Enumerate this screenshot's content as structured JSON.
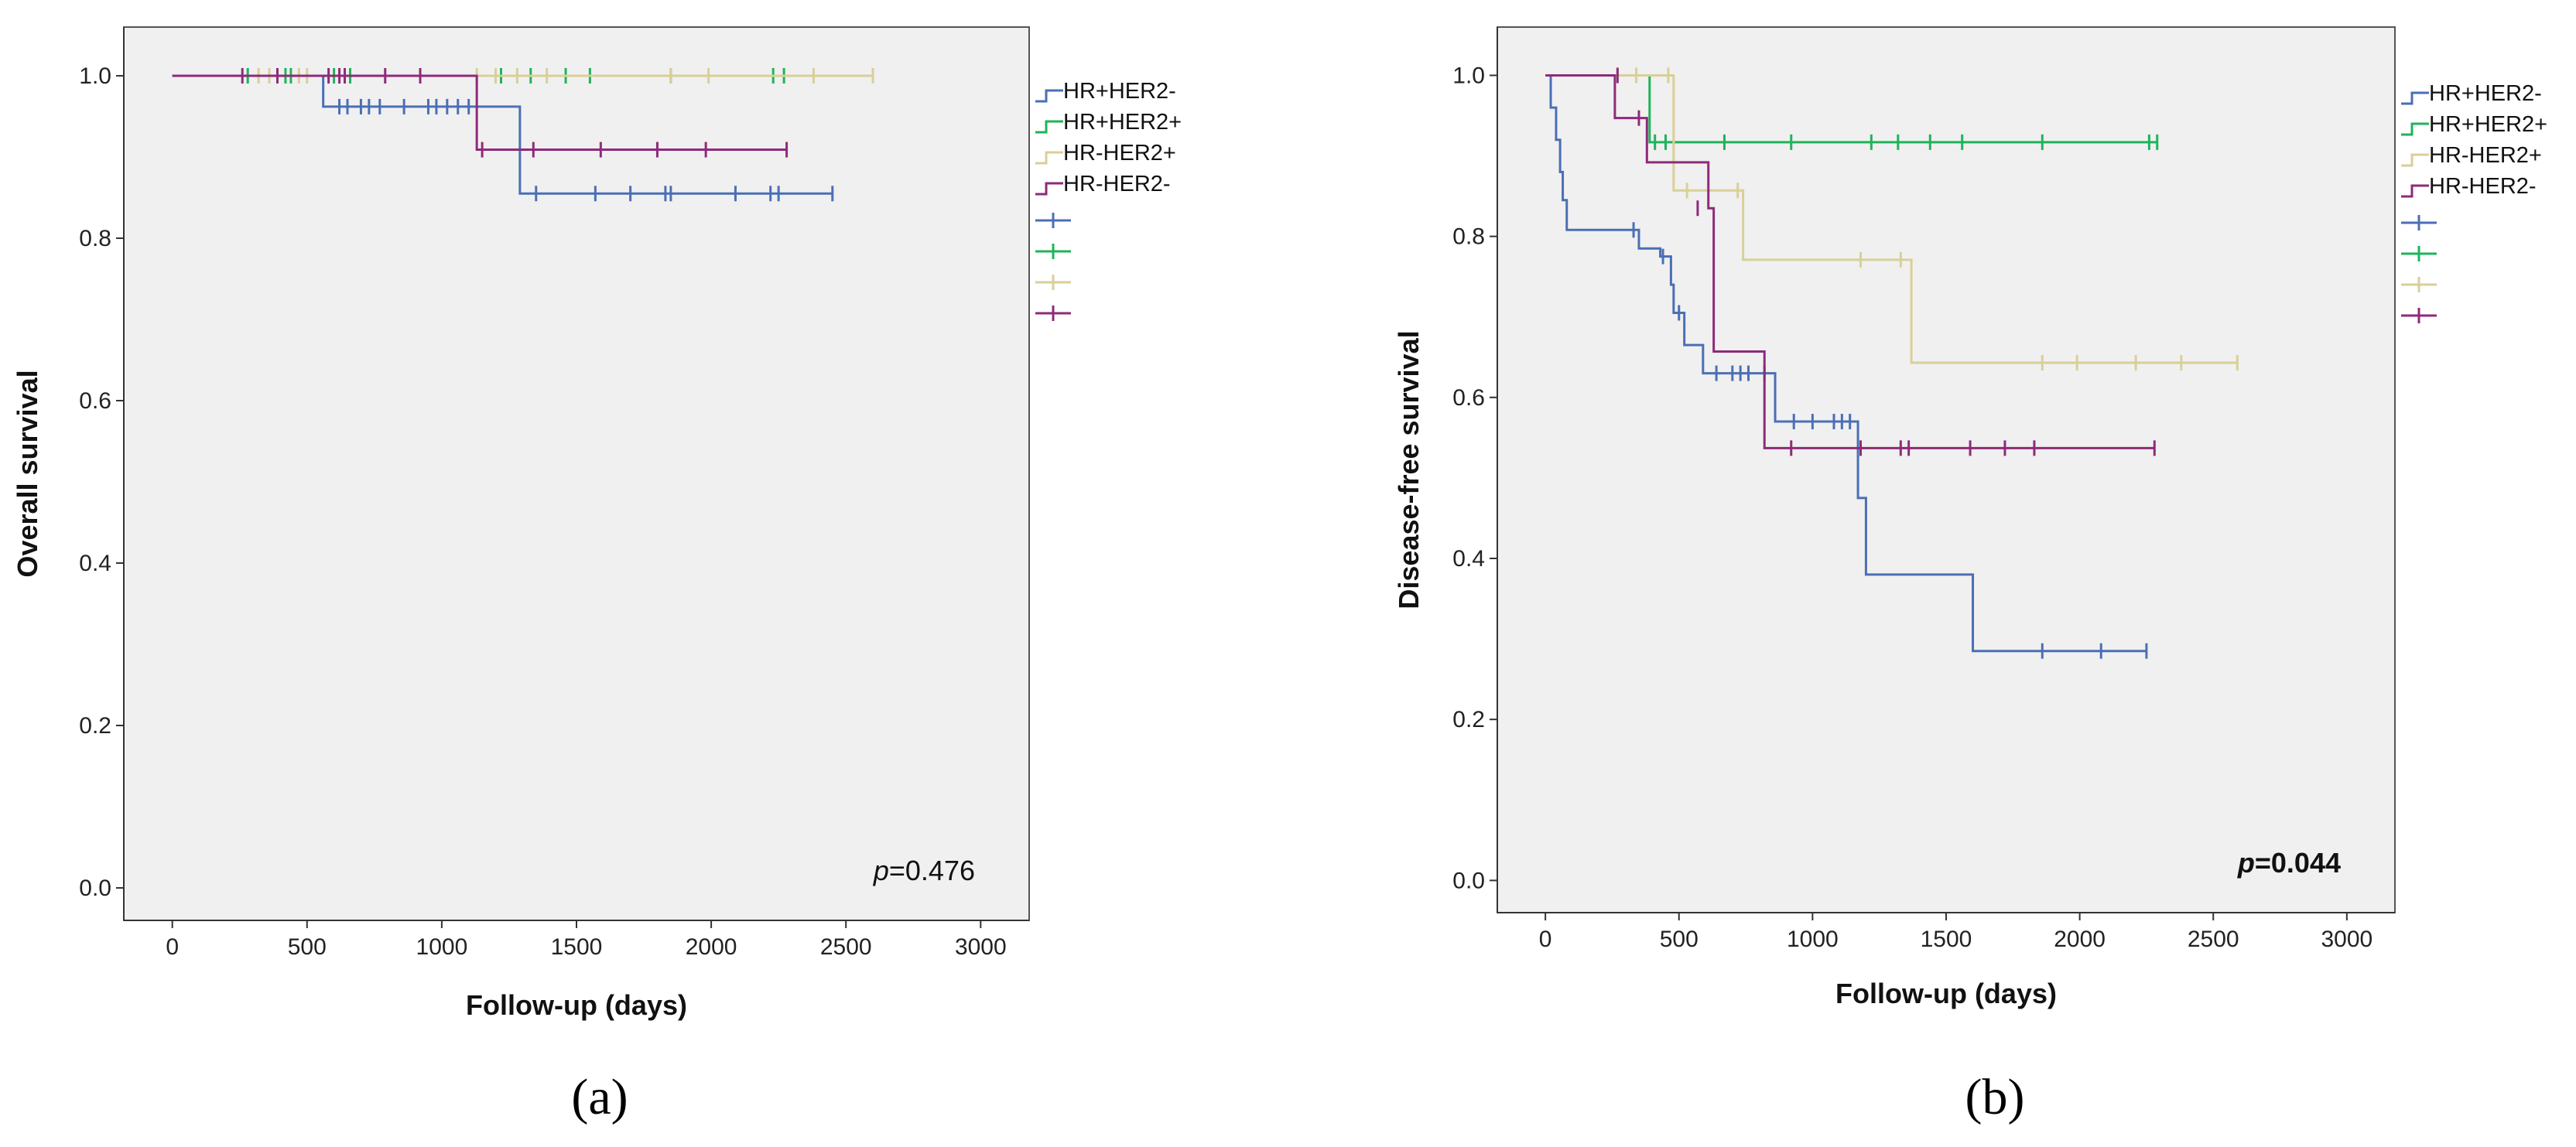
{
  "colors": {
    "HR+HER2-": "#4a6fb5",
    "HR+HER2+": "#1fb35a",
    "HR-HER2+": "#d9cf98",
    "HR-HER2-": "#8e2a7a",
    "plot_bg": "#f0f0f0",
    "frame": "#555555"
  },
  "chart_data": [
    {
      "id": "a",
      "type": "line",
      "subtype": "kaplan-meier",
      "panel_label": "(a)",
      "xlabel": "Follow-up (days)",
      "ylabel": "Overall survival",
      "xlim": [
        -180,
        3180
      ],
      "ylim": [
        -0.04,
        1.06
      ],
      "xticks": [
        0,
        500,
        1000,
        1500,
        2000,
        2500,
        3000
      ],
      "xtick_labels": [
        "0",
        "500",
        "1000",
        "1500",
        "2000",
        "2500",
        "3000"
      ],
      "yticks": [
        0.0,
        0.2,
        0.4,
        0.6,
        0.8,
        1.0
      ],
      "ytick_labels": [
        "0.0",
        "0.2",
        "0.4",
        "0.6",
        "0.8",
        "1.0"
      ],
      "annotation": {
        "italic": "p",
        "text": "=0.476",
        "bold": false
      },
      "legend": [
        "HR+HER2-",
        "HR+HER2+",
        "HR-HER2+",
        "HR-HER2-",
        "",
        "",
        "",
        ""
      ],
      "series": [
        {
          "name": "HR+HER2-",
          "steps": [
            [
              0,
              1.0
            ],
            [
              560,
              0.962
            ],
            [
              1290,
              0.855
            ],
            [
              2450,
              0.855
            ]
          ],
          "censor": [
            [
              620,
              0.962
            ],
            [
              650,
              0.962
            ],
            [
              700,
              0.962
            ],
            [
              730,
              0.962
            ],
            [
              770,
              0.962
            ],
            [
              860,
              0.962
            ],
            [
              950,
              0.962
            ],
            [
              980,
              0.962
            ],
            [
              1020,
              0.962
            ],
            [
              1060,
              0.962
            ],
            [
              1100,
              0.962
            ],
            [
              1350,
              0.855
            ],
            [
              1570,
              0.855
            ],
            [
              1700,
              0.855
            ],
            [
              1830,
              0.855
            ],
            [
              1850,
              0.855
            ],
            [
              2090,
              0.855
            ],
            [
              2220,
              0.855
            ],
            [
              2250,
              0.855
            ],
            [
              2450,
              0.855
            ]
          ]
        },
        {
          "name": "HR+HER2+",
          "steps": [
            [
              0,
              1.0
            ],
            [
              2270,
              1.0
            ]
          ],
          "censor": [
            [
              280,
              1.0
            ],
            [
              420,
              1.0
            ],
            [
              440,
              1.0
            ],
            [
              600,
              1.0
            ],
            [
              660,
              1.0
            ],
            [
              1220,
              1.0
            ],
            [
              1330,
              1.0
            ],
            [
              1460,
              1.0
            ],
            [
              1550,
              1.0
            ],
            [
              1850,
              1.0
            ],
            [
              2230,
              1.0
            ],
            [
              2270,
              1.0
            ]
          ]
        },
        {
          "name": "HR-HER2+",
          "steps": [
            [
              0,
              1.0
            ],
            [
              2600,
              1.0
            ]
          ],
          "censor": [
            [
              320,
              1.0
            ],
            [
              360,
              1.0
            ],
            [
              470,
              1.0
            ],
            [
              500,
              1.0
            ],
            [
              1130,
              1.0
            ],
            [
              1200,
              1.0
            ],
            [
              1280,
              1.0
            ],
            [
              1390,
              1.0
            ],
            [
              1850,
              1.0
            ],
            [
              1990,
              1.0
            ],
            [
              2380,
              1.0
            ],
            [
              2600,
              1.0
            ]
          ]
        },
        {
          "name": "HR-HER2-",
          "steps": [
            [
              0,
              1.0
            ],
            [
              1130,
              0.909
            ],
            [
              2280,
              0.909
            ]
          ],
          "censor": [
            [
              260,
              1.0
            ],
            [
              390,
              1.0
            ],
            [
              580,
              1.0
            ],
            [
              620,
              1.0
            ],
            [
              640,
              1.0
            ],
            [
              790,
              1.0
            ],
            [
              920,
              1.0
            ],
            [
              1150,
              0.909
            ],
            [
              1340,
              0.909
            ],
            [
              1590,
              0.909
            ],
            [
              1800,
              0.909
            ],
            [
              1980,
              0.909
            ],
            [
              2280,
              0.909
            ]
          ]
        }
      ]
    },
    {
      "id": "b",
      "type": "line",
      "subtype": "kaplan-meier",
      "panel_label": "(b)",
      "xlabel": "Follow-up (days)",
      "ylabel": "Disease-free survival",
      "xlim": [
        -180,
        3180
      ],
      "ylim": [
        -0.04,
        1.06
      ],
      "xticks": [
        0,
        500,
        1000,
        1500,
        2000,
        2500,
        3000
      ],
      "xtick_labels": [
        "0",
        "500",
        "1000",
        "1500",
        "2000",
        "2500",
        "3000"
      ],
      "yticks": [
        0.0,
        0.2,
        0.4,
        0.6,
        0.8,
        1.0
      ],
      "ytick_labels": [
        "0.0",
        "0.2",
        "0.4",
        "0.6",
        "0.8",
        "1.0"
      ],
      "annotation": {
        "italic": "p",
        "text": "=0.044",
        "bold": true
      },
      "legend": [
        "HR+HER2-",
        "HR+HER2+",
        "HR-HER2+",
        "HR-HER2-",
        "",
        "",
        "",
        ""
      ],
      "series": [
        {
          "name": "HR+HER2-",
          "steps": [
            [
              0,
              1.0
            ],
            [
              20,
              0.96
            ],
            [
              40,
              0.92
            ],
            [
              55,
              0.88
            ],
            [
              65,
              0.845
            ],
            [
              80,
              0.808
            ],
            [
              350,
              0.785
            ],
            [
              430,
              0.775
            ],
            [
              470,
              0.74
            ],
            [
              480,
              0.705
            ],
            [
              520,
              0.665
            ],
            [
              590,
              0.63
            ],
            [
              860,
              0.57
            ],
            [
              1170,
              0.475
            ],
            [
              1200,
              0.38
            ],
            [
              1600,
              0.285
            ],
            [
              2250,
              0.285
            ]
          ],
          "censor": [
            [
              330,
              0.808
            ],
            [
              440,
              0.775
            ],
            [
              500,
              0.705
            ],
            [
              640,
              0.63
            ],
            [
              700,
              0.63
            ],
            [
              730,
              0.63
            ],
            [
              760,
              0.63
            ],
            [
              820,
              0.63
            ],
            [
              930,
              0.57
            ],
            [
              1000,
              0.57
            ],
            [
              1080,
              0.57
            ],
            [
              1110,
              0.57
            ],
            [
              1140,
              0.57
            ],
            [
              1860,
              0.285
            ],
            [
              2080,
              0.285
            ],
            [
              2250,
              0.285
            ]
          ]
        },
        {
          "name": "HR+HER2+",
          "steps": [
            [
              0,
              1.0
            ],
            [
              390,
              0.917
            ],
            [
              2290,
              0.917
            ]
          ],
          "censor": [
            [
              410,
              0.917
            ],
            [
              450,
              0.917
            ],
            [
              670,
              0.917
            ],
            [
              920,
              0.917
            ],
            [
              1220,
              0.917
            ],
            [
              1320,
              0.917
            ],
            [
              1440,
              0.917
            ],
            [
              1560,
              0.917
            ],
            [
              1860,
              0.917
            ],
            [
              2260,
              0.917
            ],
            [
              2290,
              0.917
            ]
          ]
        },
        {
          "name": "HR-HER2+",
          "steps": [
            [
              0,
              1.0
            ],
            [
              480,
              0.857
            ],
            [
              740,
              0.771
            ],
            [
              1370,
              0.643
            ],
            [
              2590,
              0.643
            ]
          ],
          "censor": [
            [
              340,
              1.0
            ],
            [
              460,
              1.0
            ],
            [
              530,
              0.857
            ],
            [
              720,
              0.857
            ],
            [
              1180,
              0.771
            ],
            [
              1330,
              0.771
            ],
            [
              1860,
              0.643
            ],
            [
              1990,
              0.643
            ],
            [
              2210,
              0.643
            ],
            [
              2380,
              0.643
            ],
            [
              2590,
              0.643
            ]
          ]
        },
        {
          "name": "HR-HER2-",
          "steps": [
            [
              0,
              1.0
            ],
            [
              260,
              0.947
            ],
            [
              380,
              0.892
            ],
            [
              610,
              0.835
            ],
            [
              630,
              0.657
            ],
            [
              820,
              0.537
            ],
            [
              2280,
              0.537
            ]
          ],
          "censor": [
            [
              270,
              1.0
            ],
            [
              350,
              0.947
            ],
            [
              570,
              0.835
            ],
            [
              920,
              0.537
            ],
            [
              1180,
              0.537
            ],
            [
              1330,
              0.537
            ],
            [
              1360,
              0.537
            ],
            [
              1590,
              0.537
            ],
            [
              1720,
              0.537
            ],
            [
              1830,
              0.537
            ],
            [
              2280,
              0.537
            ]
          ]
        }
      ]
    }
  ]
}
